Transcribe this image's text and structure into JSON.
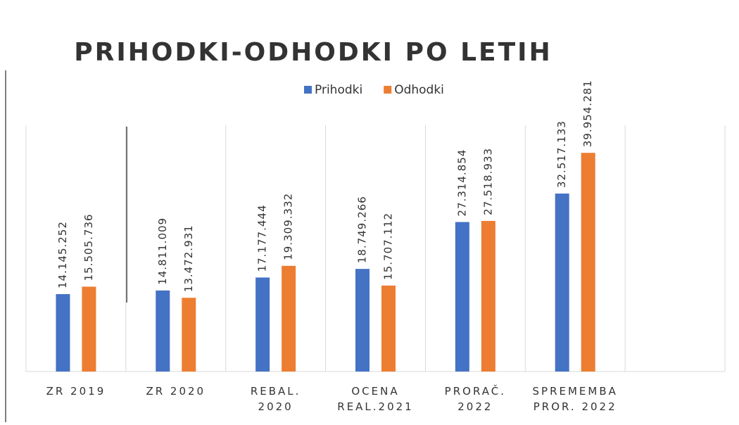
{
  "chart_data": {
    "type": "bar",
    "title": "PRIHODKI-ODHODKI  PO LETIH",
    "categories": [
      "ZR 2019",
      "ZR 2020",
      "REBAL.\n2020",
      "OCENA\nREAL.2021",
      "PRORAČ.\n2022",
      "SPREMEMBA\nPROR. 2022",
      null
    ],
    "series": [
      {
        "name": "Prihodki",
        "color": "#4472c4",
        "values": [
          14145252,
          14811009,
          17177444,
          18749266,
          27314854,
          32517133,
          null
        ],
        "value_labels": [
          "14.145.252",
          "14.811.009",
          "17.177.444",
          "18.749.266",
          "27.314.854",
          "32.517.133",
          null
        ]
      },
      {
        "name": "Odhodki",
        "color": "#ed7d31",
        "values": [
          15505736,
          13472931,
          19309332,
          15707112,
          27518933,
          39954281,
          null
        ],
        "value_labels": [
          "15.505.736",
          "13.472.931",
          "19.309.332",
          "15.707.112",
          "27.518.933",
          "39.954.281",
          null
        ]
      }
    ],
    "ylim": [
      0,
      45000000
    ]
  }
}
